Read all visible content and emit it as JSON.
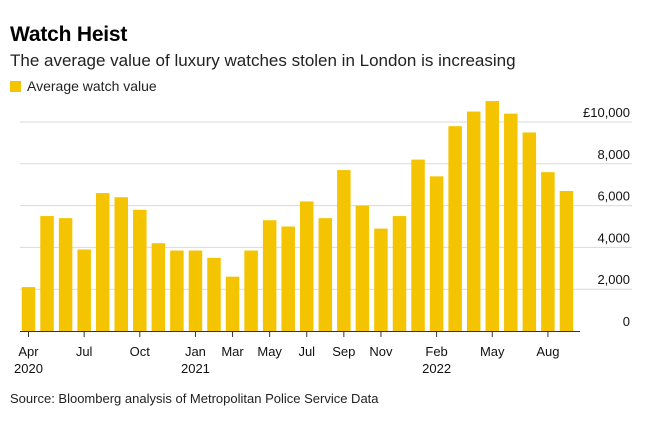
{
  "header": {
    "title": "Watch Heist",
    "subtitle": "The average value of luxury watches stolen in London is increasing"
  },
  "legend": {
    "label": "Average watch value"
  },
  "colors": {
    "bar": "#f5c400",
    "grid": "#d9d9d9",
    "axis": "#333333"
  },
  "source": "Source: Bloomberg analysis of Metropolitan Police Service Data",
  "chart_data": {
    "type": "bar",
    "title": "Watch Heist",
    "subtitle": "The average value of luxury watches stolen in London is increasing",
    "xlabel": "",
    "ylabel": "",
    "ylim": [
      0,
      10000
    ],
    "grid": true,
    "legend_position": "top-left",
    "series": [
      {
        "name": "Average watch value"
      }
    ],
    "categories": [
      "2020-04",
      "2020-05",
      "2020-06",
      "2020-07",
      "2020-08",
      "2020-09",
      "2020-10",
      "2020-11",
      "2020-12",
      "2021-01",
      "2021-02",
      "2021-03",
      "2021-04",
      "2021-05",
      "2021-06",
      "2021-07",
      "2021-08",
      "2021-09",
      "2021-10",
      "2021-11",
      "2021-12",
      "2022-01",
      "2022-02",
      "2022-03",
      "2022-04",
      "2022-05",
      "2022-06",
      "2022-07",
      "2022-08",
      "2022-09"
    ],
    "values": [
      2100,
      5500,
      5400,
      3900,
      6600,
      6400,
      5800,
      4200,
      3850,
      3850,
      3500,
      2600,
      3850,
      5300,
      5000,
      6200,
      5400,
      7700,
      6000,
      4900,
      5500,
      8200,
      7400,
      9800,
      10500,
      11000,
      10400,
      9500,
      7600,
      6700
    ],
    "x_tick_labels": [
      {
        "index": 0,
        "label": "Apr",
        "year": "2020"
      },
      {
        "index": 3,
        "label": "Jul",
        "year": ""
      },
      {
        "index": 6,
        "label": "Oct",
        "year": ""
      },
      {
        "index": 9,
        "label": "Jan",
        "year": "2021"
      },
      {
        "index": 11,
        "label": "Mar",
        "year": ""
      },
      {
        "index": 13,
        "label": "May",
        "year": ""
      },
      {
        "index": 15,
        "label": "Jul",
        "year": ""
      },
      {
        "index": 17,
        "label": "Sep",
        "year": ""
      },
      {
        "index": 19,
        "label": "Nov",
        "year": ""
      },
      {
        "index": 22,
        "label": "Feb",
        "year": "2022"
      },
      {
        "index": 25,
        "label": "May",
        "year": ""
      },
      {
        "index": 28,
        "label": "Aug",
        "year": ""
      }
    ],
    "y_ticks": [
      {
        "value": 0,
        "label": "0"
      },
      {
        "value": 2000,
        "label": "2,000"
      },
      {
        "value": 4000,
        "label": "4,000"
      },
      {
        "value": 6000,
        "label": "6,000"
      },
      {
        "value": 8000,
        "label": "8,000"
      },
      {
        "value": 10000,
        "label": "£10,000"
      }
    ]
  }
}
